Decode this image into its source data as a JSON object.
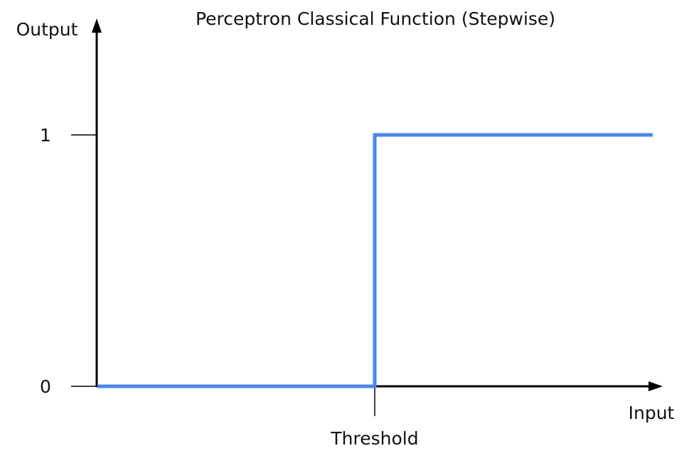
{
  "chart_data": {
    "type": "line",
    "title": "Perceptron Classical Function (Stepwise)",
    "xlabel": "Input",
    "ylabel": "Output",
    "y_ticks": [
      "0",
      "1"
    ],
    "x_tick_labels": [
      "Threshold"
    ],
    "series": [
      {
        "values": [
          {
            "x": 0,
            "y": 0
          },
          {
            "x": 1,
            "y": 0
          },
          {
            "x": 1,
            "y": 1
          },
          {
            "x": 2,
            "y": 1
          }
        ]
      }
    ],
    "colors": {
      "line": "#4a86e8",
      "axes": "#000000"
    }
  }
}
